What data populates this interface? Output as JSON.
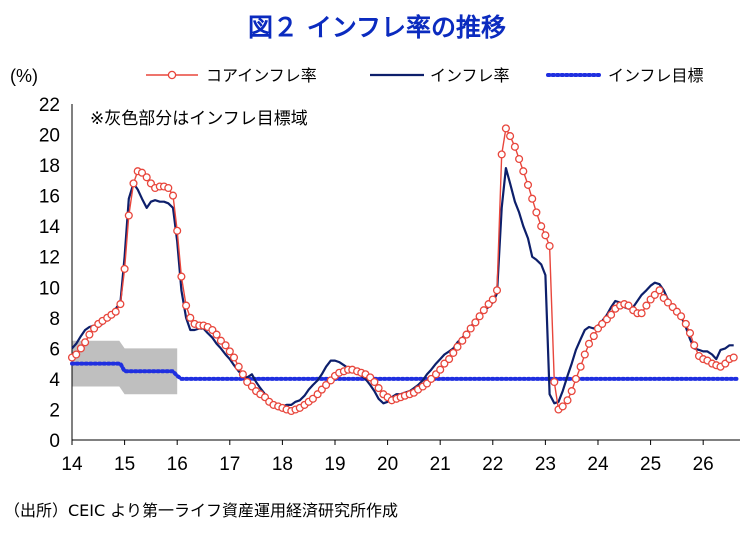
{
  "chart_data": {
    "type": "line",
    "title": "図２ インフレ率の推移",
    "ylabel": "(%)",
    "ylim": [
      0,
      22
    ],
    "yticks": [
      "0",
      "2",
      "4",
      "6",
      "8",
      "10",
      "12",
      "14",
      "16",
      "18",
      "20",
      "22"
    ],
    "xlim": [
      2014,
      2026.7
    ],
    "xticks": [
      "14",
      "15",
      "16",
      "17",
      "18",
      "19",
      "20",
      "21",
      "22",
      "23",
      "24",
      "25",
      "26"
    ],
    "note": "※灰色部分はインフレ目標域",
    "source": "（出所）CEIC より第一ライフ資産運用経済研究所作成",
    "grid": false,
    "legend_position": "top",
    "target_band": [
      {
        "from": 2014.0,
        "to": 2014.9,
        "low": 3.5,
        "high": 6.5
      },
      {
        "from": 2015.0,
        "to": 2016.0,
        "low": 3.0,
        "high": 6.0
      }
    ],
    "series": [
      {
        "name": "コアインフレ率",
        "style": "line-with-circle-markers",
        "color": "#e8463c",
        "x": [
          2014.0,
          2014.08,
          2014.17,
          2014.25,
          2014.33,
          2014.42,
          2014.5,
          2014.58,
          2014.67,
          2014.75,
          2014.83,
          2014.92,
          2015.0,
          2015.08,
          2015.17,
          2015.25,
          2015.33,
          2015.42,
          2015.5,
          2015.58,
          2015.67,
          2015.75,
          2015.83,
          2015.92,
          2016.0,
          2016.08,
          2016.17,
          2016.25,
          2016.33,
          2016.42,
          2016.5,
          2016.58,
          2016.67,
          2016.75,
          2016.83,
          2016.92,
          2017.0,
          2017.08,
          2017.17,
          2017.25,
          2017.33,
          2017.42,
          2017.5,
          2017.58,
          2017.67,
          2017.75,
          2017.83,
          2017.92,
          2018.0,
          2018.08,
          2018.17,
          2018.25,
          2018.33,
          2018.42,
          2018.5,
          2018.58,
          2018.67,
          2018.75,
          2018.83,
          2018.92,
          2019.0,
          2019.08,
          2019.17,
          2019.25,
          2019.33,
          2019.42,
          2019.5,
          2019.58,
          2019.67,
          2019.75,
          2019.83,
          2019.92,
          2020.0,
          2020.08,
          2020.17,
          2020.25,
          2020.33,
          2020.42,
          2020.5,
          2020.58,
          2020.67,
          2020.75,
          2020.83,
          2020.92,
          2021.0,
          2021.08,
          2021.17,
          2021.25,
          2021.33,
          2021.42,
          2021.5,
          2021.58,
          2021.67,
          2021.75,
          2021.83,
          2021.92,
          2022.0,
          2022.08,
          2022.17,
          2022.25,
          2022.33,
          2022.42,
          2022.5,
          2022.58,
          2022.67,
          2022.75,
          2022.83,
          2022.92,
          2023.0,
          2023.08,
          2023.17,
          2023.25,
          2023.33,
          2023.42,
          2023.5,
          2023.58,
          2023.67,
          2023.75,
          2023.83,
          2023.92,
          2024.0,
          2024.08,
          2024.17,
          2024.25,
          2024.33,
          2024.42,
          2024.5,
          2024.58,
          2024.67,
          2024.75,
          2024.83,
          2024.92,
          2025.0,
          2025.08,
          2025.17,
          2025.25,
          2025.33,
          2025.42,
          2025.5,
          2025.58,
          2025.67,
          2025.75,
          2025.83,
          2025.92,
          2026.0,
          2026.08,
          2026.17,
          2026.25,
          2026.33,
          2026.42,
          2026.5,
          2026.58
        ],
        "y": [
          5.4,
          5.6,
          6.0,
          6.4,
          6.9,
          7.3,
          7.6,
          7.8,
          8.0,
          8.2,
          8.4,
          8.9,
          11.2,
          14.7,
          16.8,
          17.6,
          17.5,
          17.2,
          16.8,
          16.5,
          16.6,
          16.6,
          16.5,
          16.0,
          13.7,
          10.7,
          8.8,
          8.0,
          7.6,
          7.5,
          7.5,
          7.4,
          7.2,
          6.9,
          6.5,
          6.2,
          5.8,
          5.4,
          4.8,
          4.3,
          3.8,
          3.5,
          3.2,
          3.0,
          2.8,
          2.5,
          2.3,
          2.2,
          2.1,
          2.0,
          1.9,
          2.0,
          2.1,
          2.3,
          2.5,
          2.7,
          3.0,
          3.3,
          3.6,
          3.9,
          4.2,
          4.4,
          4.5,
          4.6,
          4.6,
          4.5,
          4.4,
          4.3,
          4.1,
          3.8,
          3.4,
          3.0,
          2.8,
          2.6,
          2.7,
          2.8,
          2.9,
          3.0,
          3.1,
          3.3,
          3.5,
          3.7,
          4.0,
          4.3,
          4.6,
          5.0,
          5.3,
          5.7,
          6.1,
          6.5,
          6.9,
          7.3,
          7.7,
          8.1,
          8.5,
          8.9,
          9.2,
          9.8,
          18.7,
          20.4,
          19.9,
          19.2,
          18.4,
          17.6,
          16.7,
          15.8,
          14.9,
          14.0,
          13.4,
          12.7,
          3.8,
          2.0,
          2.2,
          2.6,
          3.2,
          4.0,
          4.8,
          5.6,
          6.3,
          6.8,
          7.3,
          7.6,
          7.9,
          8.2,
          8.6,
          8.8,
          8.9,
          8.8,
          8.5,
          8.3,
          8.3,
          8.8,
          9.2,
          9.5,
          9.8,
          9.3,
          9.0,
          8.7,
          8.4,
          8.1,
          7.6,
          7.0,
          6.2,
          5.5,
          5.3,
          5.2,
          5.0,
          4.9,
          4.8,
          5.0,
          5.3,
          5.4
        ]
      },
      {
        "name": "インフレ率",
        "style": "solid-line",
        "color": "#0d1f6b",
        "x": [
          2014.0,
          2014.08,
          2014.17,
          2014.25,
          2014.33,
          2014.42,
          2014.5,
          2014.58,
          2014.67,
          2014.75,
          2014.83,
          2014.92,
          2015.0,
          2015.08,
          2015.17,
          2015.25,
          2015.33,
          2015.42,
          2015.5,
          2015.58,
          2015.67,
          2015.75,
          2015.83,
          2015.92,
          2016.0,
          2016.08,
          2016.17,
          2016.25,
          2016.33,
          2016.42,
          2016.5,
          2016.58,
          2016.67,
          2016.75,
          2016.83,
          2016.92,
          2017.0,
          2017.08,
          2017.17,
          2017.25,
          2017.33,
          2017.42,
          2017.5,
          2017.58,
          2017.67,
          2017.75,
          2017.83,
          2017.92,
          2018.0,
          2018.08,
          2018.17,
          2018.25,
          2018.33,
          2018.42,
          2018.5,
          2018.58,
          2018.67,
          2018.75,
          2018.83,
          2018.92,
          2019.0,
          2019.08,
          2019.17,
          2019.25,
          2019.33,
          2019.42,
          2019.5,
          2019.58,
          2019.67,
          2019.75,
          2019.83,
          2019.92,
          2020.0,
          2020.08,
          2020.17,
          2020.25,
          2020.33,
          2020.42,
          2020.5,
          2020.58,
          2020.67,
          2020.75,
          2020.83,
          2020.92,
          2021.0,
          2021.08,
          2021.17,
          2021.25,
          2021.33,
          2021.42,
          2021.5,
          2021.58,
          2021.67,
          2021.75,
          2021.83,
          2021.92,
          2022.0,
          2022.08,
          2022.17,
          2022.25,
          2022.33,
          2022.42,
          2022.5,
          2022.58,
          2022.67,
          2022.75,
          2022.83,
          2022.92,
          2023.0,
          2023.08,
          2023.17,
          2023.25,
          2023.33,
          2023.42,
          2023.5,
          2023.58,
          2023.67,
          2023.75,
          2023.83,
          2023.92,
          2024.0,
          2024.08,
          2024.17,
          2024.25,
          2024.33,
          2024.42,
          2024.5,
          2024.58,
          2024.67,
          2024.75,
          2024.83,
          2024.92,
          2025.0,
          2025.08,
          2025.17,
          2025.25,
          2025.33,
          2025.42,
          2025.5,
          2025.58,
          2025.67,
          2025.75,
          2025.83,
          2025.92,
          2026.0,
          2026.08,
          2026.17,
          2026.25,
          2026.33,
          2026.42,
          2026.5,
          2026.58
        ],
        "y": [
          6.0,
          6.3,
          6.8,
          7.2,
          7.4,
          7.5,
          7.4,
          7.6,
          7.9,
          8.2,
          8.6,
          9.0,
          12.0,
          15.8,
          16.8,
          16.4,
          15.8,
          15.2,
          15.6,
          15.7,
          15.6,
          15.6,
          15.5,
          15.2,
          13.0,
          9.8,
          8.0,
          7.2,
          7.2,
          7.3,
          7.3,
          7.0,
          6.7,
          6.3,
          6.0,
          5.6,
          5.3,
          4.9,
          4.5,
          4.2,
          4.1,
          4.3,
          3.8,
          3.4,
          3.0,
          2.6,
          2.3,
          2.1,
          2.2,
          2.3,
          2.3,
          2.5,
          2.6,
          2.9,
          3.3,
          3.6,
          3.9,
          4.3,
          4.8,
          5.2,
          5.2,
          5.1,
          4.9,
          4.7,
          4.6,
          4.4,
          4.2,
          4.0,
          3.6,
          3.2,
          2.7,
          2.4,
          2.5,
          2.8,
          3.0,
          3.0,
          3.1,
          3.2,
          3.4,
          3.6,
          3.9,
          4.3,
          4.6,
          5.0,
          5.3,
          5.6,
          5.8,
          6.0,
          6.4,
          6.7,
          7.0,
          7.4,
          7.8,
          8.2,
          8.5,
          8.7,
          9.0,
          9.6,
          15.2,
          17.8,
          16.8,
          15.6,
          14.9,
          14.0,
          13.2,
          12.0,
          11.8,
          11.5,
          10.8,
          3.0,
          2.4,
          2.5,
          3.2,
          4.2,
          5.0,
          5.9,
          6.6,
          7.2,
          7.4,
          7.3,
          7.5,
          7.8,
          8.2,
          8.7,
          9.1,
          9.0,
          8.7,
          8.6,
          8.7,
          9.1,
          9.5,
          9.8,
          10.1,
          10.3,
          10.2,
          9.8,
          9.2,
          8.6,
          8.3,
          8.1,
          7.4,
          6.6,
          6.0,
          5.9,
          5.8,
          5.8,
          5.6,
          5.3,
          5.9,
          6.0,
          6.2,
          6.2
        ]
      },
      {
        "name": "インフレ目標",
        "style": "dotted-line",
        "color": "#1f2fe0",
        "x": [
          2014.0,
          2014.92,
          2015.0,
          2015.92,
          2016.0,
          2016.08,
          2026.67
        ],
        "y": [
          5.0,
          5.0,
          4.5,
          4.5,
          4.2,
          4.0,
          4.0
        ]
      }
    ]
  }
}
